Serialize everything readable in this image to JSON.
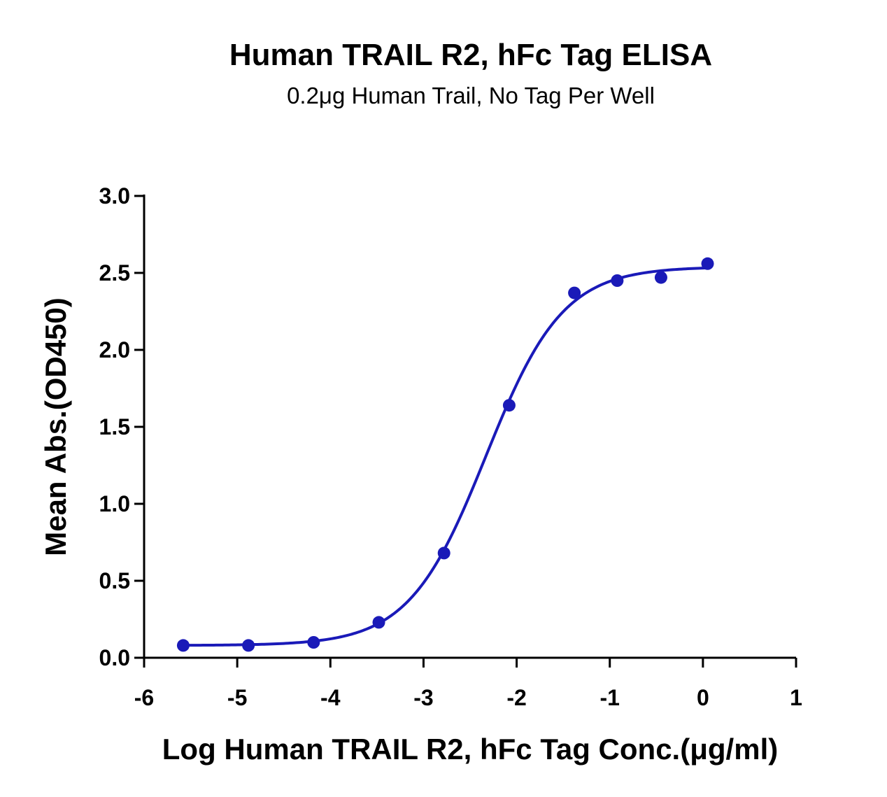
{
  "chart_data": {
    "type": "scatter",
    "title": "Human TRAIL R2, hFc Tag ELISA",
    "subtitle": "0.2μg Human Trail, No Tag Per Well",
    "xlabel": "Log Human TRAIL R2, hFc Tag Conc.(μg/ml)",
    "ylabel": "Mean Abs.(OD450)",
    "xlim": [
      -6,
      1
    ],
    "ylim": [
      0,
      3.0
    ],
    "x_ticks": [
      "-6",
      "-5",
      "-4",
      "-3",
      "-2",
      "-1",
      "0",
      "1"
    ],
    "y_ticks": [
      "0.0",
      "0.5",
      "1.0",
      "1.5",
      "2.0",
      "2.5",
      "3.0"
    ],
    "grid": false,
    "legend": "none",
    "series": [
      {
        "points": [
          {
            "x": -5.58,
            "y": 0.08
          },
          {
            "x": -4.88,
            "y": 0.08
          },
          {
            "x": -4.18,
            "y": 0.1
          },
          {
            "x": -3.48,
            "y": 0.23
          },
          {
            "x": -2.78,
            "y": 0.68
          },
          {
            "x": -2.08,
            "y": 1.64
          },
          {
            "x": -1.38,
            "y": 2.37
          },
          {
            "x": -0.92,
            "y": 2.45
          },
          {
            "x": -0.45,
            "y": 2.47
          },
          {
            "x": 0.05,
            "y": 2.56
          }
        ],
        "fit": "4PL",
        "color": "#1a1ab8"
      }
    ]
  }
}
